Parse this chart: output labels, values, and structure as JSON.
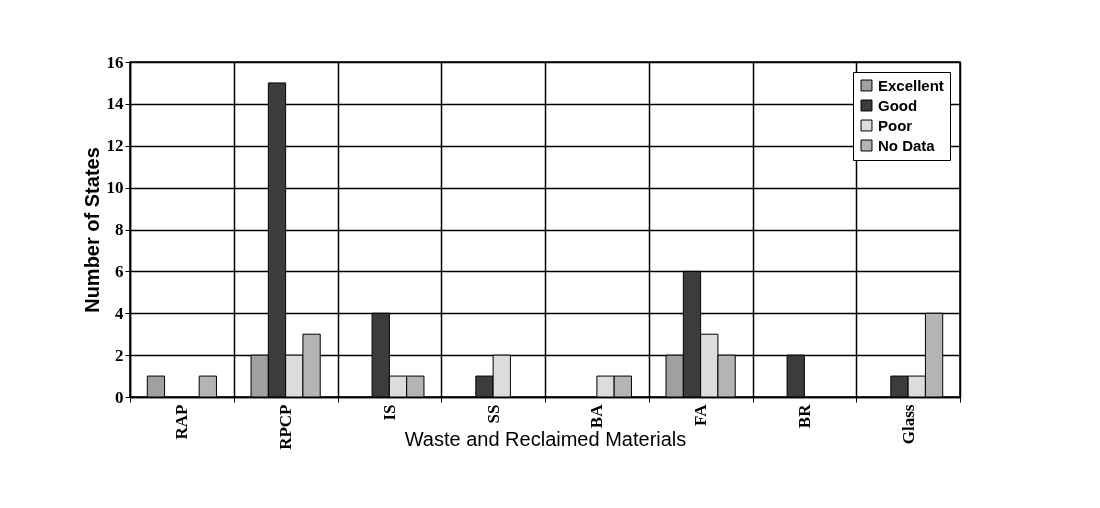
{
  "chart_data": {
    "type": "bar",
    "xlabel": "Waste and Reclaimed Materials",
    "ylabel": "Number of States",
    "categories": [
      "RAP",
      "RPCP",
      "IS",
      "SS",
      "BA",
      "FA",
      "BR",
      "Glass"
    ],
    "series": [
      {
        "name": "Excellent",
        "color": "#a0a0a0",
        "values": [
          1,
          2,
          0,
          0,
          0,
          2,
          0,
          0
        ]
      },
      {
        "name": "Good",
        "color": "#3c3c3c",
        "values": [
          0,
          15,
          4,
          1,
          0,
          6,
          2,
          1
        ]
      },
      {
        "name": "Poor",
        "color": "#dcdcdc",
        "values": [
          0,
          2,
          1,
          2,
          1,
          3,
          0,
          1
        ]
      },
      {
        "name": "No Data",
        "color": "#b4b4b4",
        "values": [
          1,
          3,
          1,
          0,
          1,
          2,
          0,
          4
        ]
      }
    ],
    "ylim": [
      0,
      16
    ],
    "yticks": [
      0,
      2,
      4,
      6,
      8,
      10,
      12,
      14,
      16
    ],
    "grid": true,
    "legend": "top right"
  }
}
